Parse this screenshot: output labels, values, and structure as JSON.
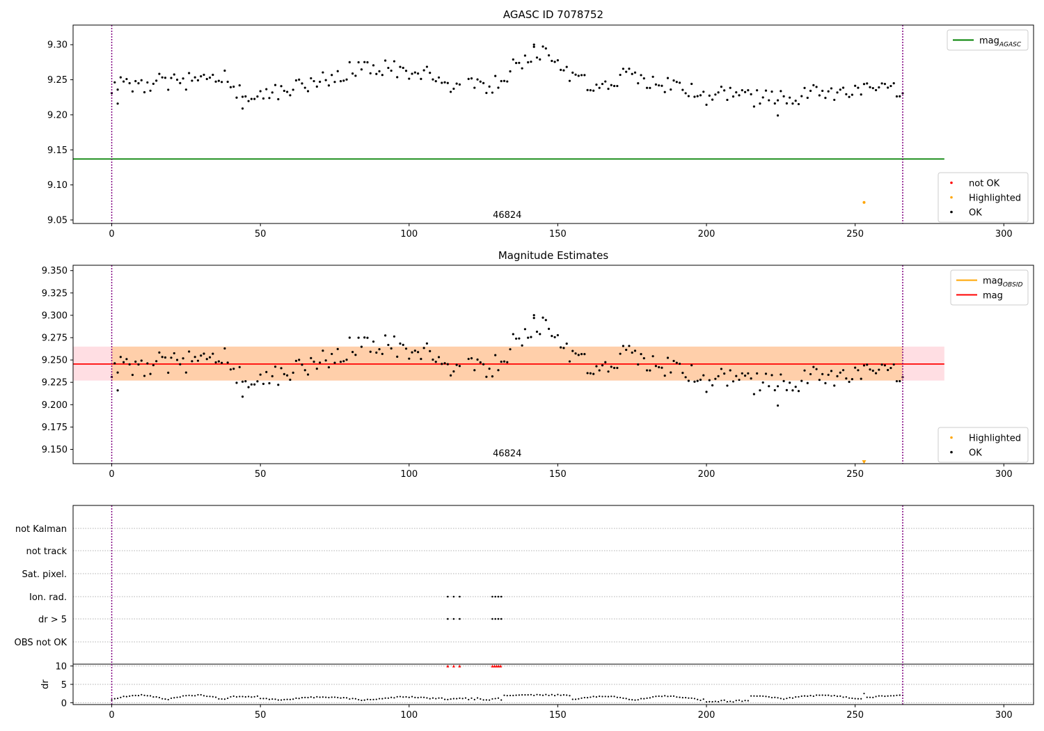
{
  "chart_data": [
    {
      "type": "scatter",
      "title": "AGASC ID 7078752",
      "xlim": [
        -13,
        310
      ],
      "ylim": [
        9.045,
        9.328
      ],
      "xticks": [
        0,
        50,
        100,
        150,
        200,
        250,
        300
      ],
      "yticks": [
        "9.05",
        "9.10",
        "9.15",
        "9.20",
        "9.25",
        "9.30"
      ],
      "vlines": [
        0,
        266
      ],
      "annotation": {
        "text": "46824",
        "x": 133,
        "y": 9.053
      },
      "reference_lines": [
        {
          "label": "mag",
          "subscript": "AGASC",
          "value": 9.137,
          "color": "#008000",
          "x_range": [
            -13,
            280
          ]
        }
      ],
      "highlighted_points": [
        {
          "x": 253,
          "y": 9.075
        }
      ],
      "legend_lines": [
        {
          "label": "mag",
          "subscript": "AGASC",
          "color": "#008000"
        }
      ],
      "legend_points": [
        {
          "label": "not OK",
          "color": "#ff0000"
        },
        {
          "label": "Highlighted",
          "color": "#ffa500"
        },
        {
          "label": "OK",
          "color": "#000000"
        }
      ]
    },
    {
      "type": "scatter",
      "title": "Magnitude Estimates",
      "xlim": [
        -13,
        310
      ],
      "ylim": [
        9.134,
        9.356
      ],
      "xticks": [
        0,
        50,
        100,
        150,
        200,
        250,
        300
      ],
      "yticks": [
        "9.150",
        "9.175",
        "9.200",
        "9.225",
        "9.250",
        "9.275",
        "9.300",
        "9.325",
        "9.350"
      ],
      "vlines": [
        0,
        266
      ],
      "annotation": {
        "text": "46824",
        "x": 133,
        "y": 9.142
      },
      "band": {
        "y_range": [
          9.227,
          9.265
        ],
        "x_range": [
          -13,
          280
        ]
      },
      "inner_band": {
        "y_range": [
          9.227,
          9.265
        ],
        "x_range": [
          0,
          266
        ]
      },
      "reference_lines": [
        {
          "label": "mag",
          "value": 9.2455,
          "color": "#ff0000",
          "x_range": [
            -13,
            280
          ]
        }
      ],
      "highlighted_points": [
        {
          "x": 253,
          "y": 9.1355
        }
      ],
      "legend_lines": [
        {
          "label": "mag",
          "subscript": "OBSID",
          "color": "#ffa500"
        },
        {
          "label": "mag",
          "color": "#ff0000"
        }
      ],
      "legend_points": [
        {
          "label": "Highlighted",
          "color": "#ffa500"
        },
        {
          "label": "OK",
          "color": "#000000"
        }
      ]
    },
    {
      "type": "scatter",
      "xlim": [
        -13,
        310
      ],
      "flag_categories": [
        "not Kalman",
        "not track",
        "Sat. pixel.",
        "Ion. rad.",
        "dr > 5",
        "OBS not OK"
      ],
      "flags": {
        "Ion. rad.": [
          113,
          115,
          117,
          128,
          129,
          130,
          131
        ],
        "dr > 5": [
          113,
          115,
          117,
          128,
          129,
          130,
          131
        ]
      },
      "dr_ylabel": "dr",
      "dr_yticks": [
        "0",
        "5",
        "10"
      ],
      "dr_ylim": [
        -0.5,
        10.5
      ],
      "dr_clipped_x": [
        113,
        115,
        117,
        128,
        128.7,
        129.4,
        130.1,
        130.8
      ],
      "xticks": [
        0,
        50,
        100,
        150,
        200,
        250,
        300
      ],
      "vlines": [
        0,
        266
      ]
    }
  ]
}
